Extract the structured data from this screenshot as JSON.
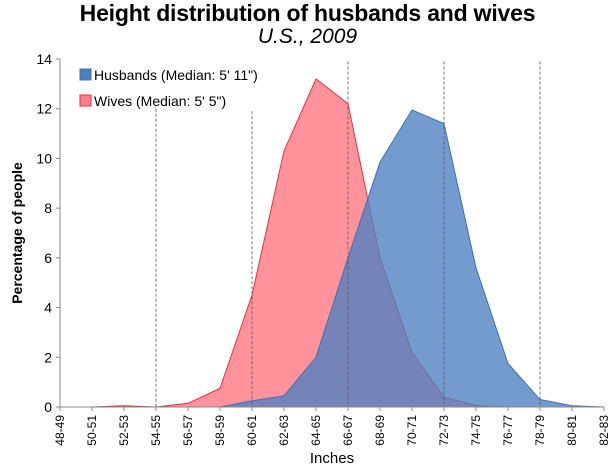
{
  "chart_data": {
    "type": "area",
    "title": "Height distribution of husbands and wives",
    "subtitle": "U.S., 2009",
    "xlabel": "Inches",
    "ylabel": "Percentage of people",
    "ylim": [
      0,
      14
    ],
    "yticks": [
      "0",
      "2",
      "4",
      "6",
      "8",
      "10",
      "12",
      "14"
    ],
    "categories": [
      "48-49",
      "50-51",
      "52-53",
      "54-55",
      "56-57",
      "58-59",
      "60-61",
      "62-63",
      "64-65",
      "66-67",
      "68-69",
      "70-71",
      "72-73",
      "74-75",
      "76-77",
      "78-79",
      "80-81",
      "82-83"
    ],
    "median_lines_at": [
      "54-55",
      "60-61",
      "66-67",
      "72-73",
      "78-79"
    ],
    "median_line_tops": [
      12.0,
      11.9,
      13.9,
      13.9,
      13.9
    ],
    "series": [
      {
        "name": "Wives",
        "legend": "Wives (Median: 5' 5\")",
        "fill": "#ff7f8a",
        "stroke": "#e8323f",
        "values": [
          0.0,
          0.0,
          0.05,
          0.0,
          0.15,
          0.75,
          4.5,
          10.3,
          13.2,
          12.2,
          6.0,
          2.2,
          0.4,
          0.05,
          0.0,
          0.0,
          0.0,
          0.0
        ]
      },
      {
        "name": "Husbands",
        "legend": "Husbands (Median: 5' 11\")",
        "fill": "#4d7fc0",
        "stroke": "#3f6fb0",
        "values": [
          0.0,
          0.0,
          0.0,
          0.0,
          0.0,
          0.0,
          0.25,
          0.45,
          2.0,
          6.0,
          9.85,
          11.95,
          11.4,
          5.6,
          1.75,
          0.3,
          0.05,
          0.0
        ]
      }
    ]
  }
}
